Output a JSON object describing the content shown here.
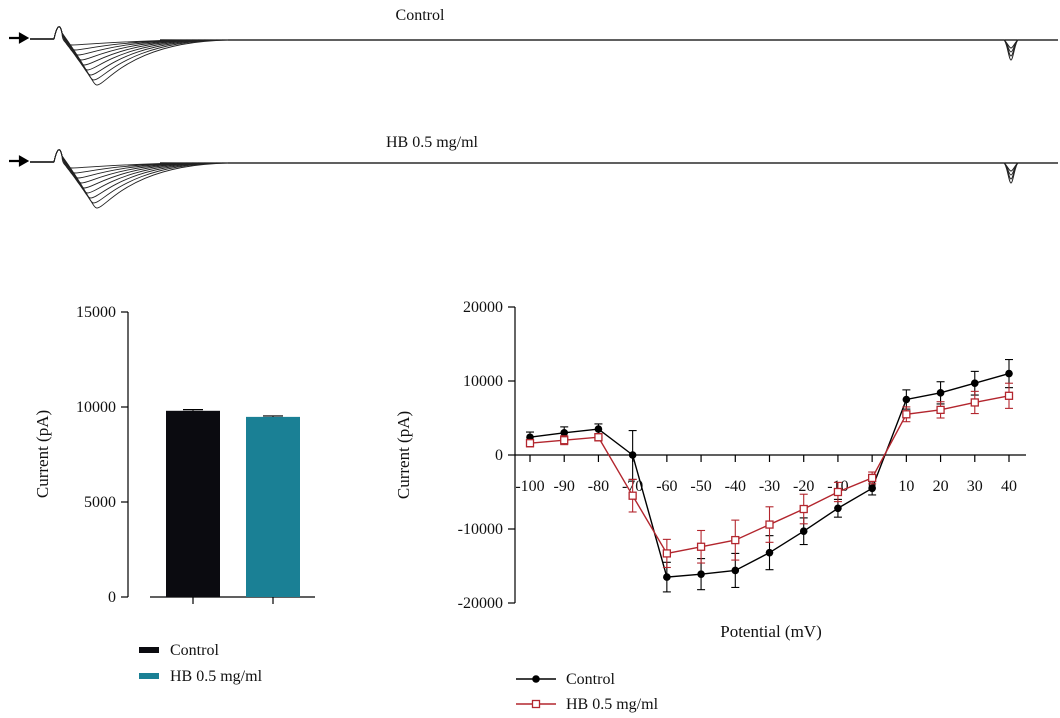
{
  "traces": {
    "top_label": "Control",
    "bottom_label": "HB 0.5 mg/ml"
  },
  "chart_data": [
    {
      "type": "bar",
      "title": "",
      "xlabel": "",
      "ylabel": "Current (pA)",
      "ylim": [
        0,
        15000
      ],
      "yticks": [
        0,
        5000,
        10000,
        15000
      ],
      "categories": [
        "Control",
        "HB 0.5 mg/ml"
      ],
      "values": [
        9800,
        9480
      ],
      "errors": [
        60,
        50
      ],
      "colors": [
        "#0b0b10",
        "#1a8095"
      ],
      "legend": [
        {
          "label": "Control",
          "color": "#0b0b10"
        },
        {
          "label": "HB 0.5 mg/ml",
          "color": "#1a8095"
        }
      ],
      "legend_position": "bottom-left"
    },
    {
      "type": "line",
      "title": "",
      "xlabel": "Potential (mV)",
      "ylabel": "Current (pA)",
      "ylim": [
        -20000,
        20000
      ],
      "yticks": [
        -20000,
        -10000,
        0,
        10000,
        20000
      ],
      "x": [
        -100,
        -90,
        -80,
        -70,
        -60,
        -50,
        -40,
        -30,
        -20,
        -10,
        0,
        10,
        20,
        30,
        40
      ],
      "xtick_labels": [
        "-100",
        "-90",
        "-80",
        "-70",
        "-60",
        "-50",
        "-40",
        "-30",
        "-20",
        "-10",
        "0",
        "10",
        "20",
        "30",
        "40"
      ],
      "series": [
        {
          "name": "Control",
          "color": "#000000",
          "marker": "circle",
          "values": [
            2400,
            3000,
            3500,
            0,
            -16500,
            -16100,
            -15600,
            -13200,
            -10300,
            -7200,
            -4500,
            7500,
            8400,
            9700,
            11000
          ],
          "errors": [
            700,
            800,
            700,
            3300,
            2000,
            2100,
            2300,
            2300,
            1800,
            1200,
            900,
            1300,
            1500,
            1600,
            1900
          ]
        },
        {
          "name": "HB 0.5 mg/ml",
          "color": "#b3262e",
          "marker": "square",
          "values": [
            1600,
            2000,
            2400,
            -5500,
            -13300,
            -12400,
            -11500,
            -9400,
            -7300,
            -5000,
            -3100,
            5500,
            6100,
            7100,
            8000
          ],
          "errors": [
            500,
            600,
            500,
            2200,
            1900,
            2200,
            2700,
            2400,
            2000,
            1300,
            800,
            1000,
            1100,
            1500,
            1700
          ]
        }
      ],
      "legend_position": "bottom-left"
    }
  ]
}
